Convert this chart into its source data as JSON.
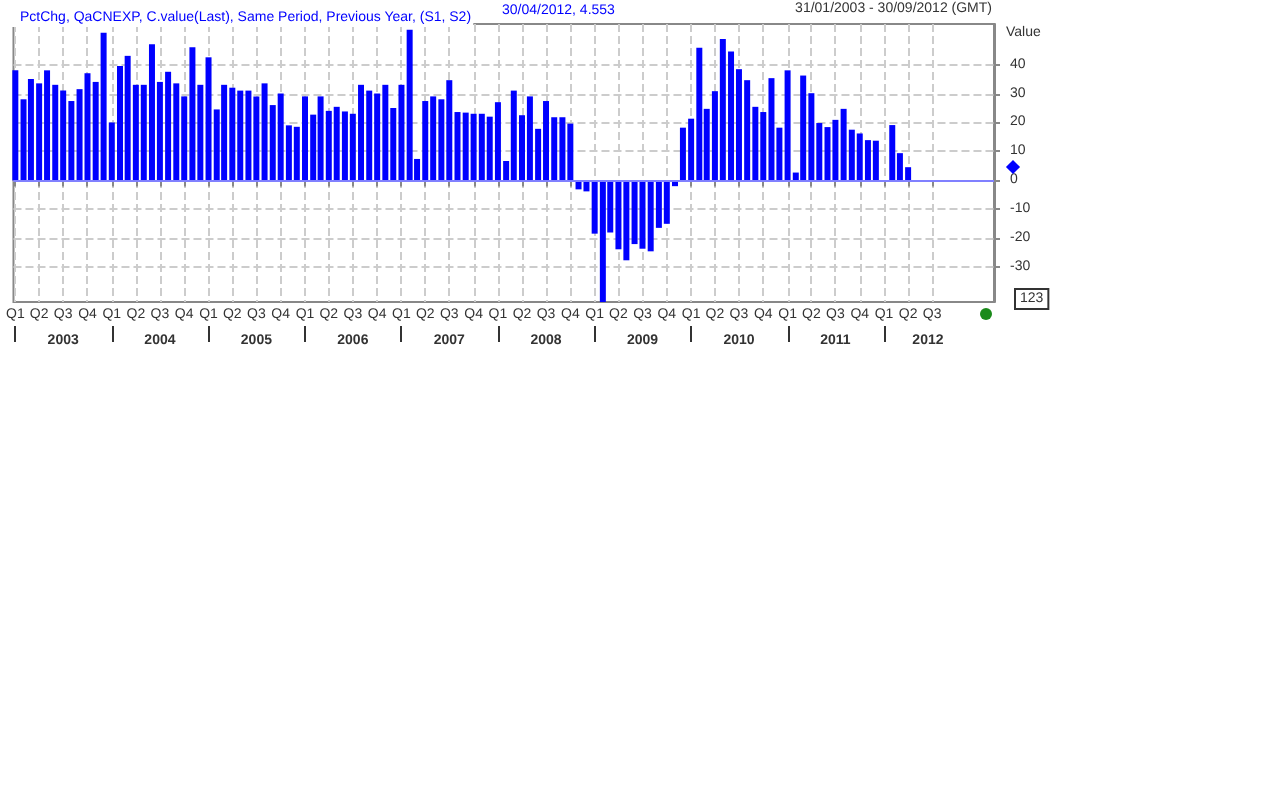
{
  "chart_data": {
    "type": "bar",
    "subtitle": "31/01/2003 - 30/09/2012 (GMT)",
    "ylabel": "Value",
    "annotations": [
      "30/04/2012, 4.553",
      "123"
    ],
    "x": [
      "2003-01",
      "2003-02",
      "2003-03",
      "2003-04",
      "2003-05",
      "2003-06",
      "2003-07",
      "2003-08",
      "2003-09",
      "2003-10",
      "2003-11",
      "2003-12",
      "2004-01",
      "2004-02",
      "2004-03",
      "2004-04",
      "2004-05",
      "2004-06",
      "2004-07",
      "2004-08",
      "2004-09",
      "2004-10",
      "2004-11",
      "2004-12",
      "2005-01",
      "2005-02",
      "2005-03",
      "2005-04",
      "2005-05",
      "2005-06",
      "2005-07",
      "2005-08",
      "2005-09",
      "2005-10",
      "2005-11",
      "2005-12",
      "2006-01",
      "2006-02",
      "2006-03",
      "2006-04",
      "2006-05",
      "2006-06",
      "2006-07",
      "2006-08",
      "2006-09",
      "2006-10",
      "2006-11",
      "2006-12",
      "2007-01",
      "2007-02",
      "2007-03",
      "2007-04",
      "2007-05",
      "2007-06",
      "2007-07",
      "2007-08",
      "2007-09",
      "2007-10",
      "2007-11",
      "2007-12",
      "2008-01",
      "2008-02",
      "2008-03",
      "2008-04",
      "2008-05",
      "2008-06",
      "2008-07",
      "2008-08",
      "2008-09",
      "2008-10",
      "2008-11",
      "2008-12",
      "2009-01",
      "2009-02",
      "2009-03",
      "2009-04",
      "2009-05",
      "2009-06",
      "2009-07",
      "2009-08",
      "2009-09",
      "2009-10",
      "2009-11",
      "2009-12",
      "2010-01",
      "2010-02",
      "2010-03",
      "2010-04",
      "2010-05",
      "2010-06",
      "2010-07",
      "2010-08",
      "2010-09",
      "2010-10",
      "2010-11",
      "2010-12",
      "2011-01",
      "2011-02",
      "2011-03",
      "2011-04",
      "2011-05",
      "2011-06",
      "2011-07",
      "2011-08",
      "2011-09",
      "2011-10",
      "2011-11",
      "2011-12",
      "2012-01",
      "2012-02",
      "2012-03",
      "2012-04"
    ],
    "series": [
      {
        "name": "PctChg, QaCNEXP, C.value(Last), Same Period, Previous Year, (S1, S2)",
        "color": "#0000ff",
        "values": [
          38,
          28,
          35,
          33.5,
          38,
          33,
          31,
          27.4,
          31.5,
          37,
          34,
          51,
          20,
          39.5,
          43,
          33,
          33,
          47,
          34,
          37.5,
          33.5,
          29,
          46,
          33,
          42.5,
          24.5,
          33,
          32,
          31,
          31,
          29,
          33.5,
          26,
          30,
          19,
          18.5,
          29,
          22.7,
          29,
          24,
          25.4,
          23.8,
          23,
          33,
          31,
          30,
          33,
          25,
          33,
          52,
          7.4,
          27.4,
          29,
          28,
          34.6,
          23.6,
          23.4,
          23,
          23,
          22,
          27,
          6.7,
          31,
          22.5,
          29,
          17.8,
          27.4,
          21.8,
          21.8,
          19.6,
          -3.1,
          -3.8,
          -18.4,
          -42,
          -18,
          -23.8,
          -27.6,
          -22,
          -23.6,
          -24.5,
          -16.4,
          -15,
          -2,
          18.2,
          21.3,
          45.8,
          24.7,
          30.8,
          48.8,
          44.5,
          38.4,
          34.6,
          25.4,
          23.6,
          35.3,
          18.2,
          38,
          2.7,
          36.2,
          30.1,
          19.8,
          18.4,
          20.9,
          24.7,
          17.5,
          16.2,
          13.9,
          13.7,
          -0.5,
          19.1,
          9.4,
          4.553
        ]
      }
    ],
    "xlim": [
      "2002-12-25",
      "2013-02-20"
    ],
    "xticks": [
      {
        "value": "2003-01",
        "label": "Q1"
      },
      {
        "value": "2003-04",
        "label": "Q2"
      },
      {
        "value": "2003-07",
        "label": "Q3"
      },
      {
        "value": "2003-10",
        "label": "Q4"
      },
      {
        "value": "2004-01",
        "label": "Q1"
      },
      {
        "value": "2004-04",
        "label": "Q2"
      },
      {
        "value": "2004-07",
        "label": "Q3"
      },
      {
        "value": "2004-10",
        "label": "Q4"
      },
      {
        "value": "2005-01",
        "label": "Q1"
      },
      {
        "value": "2005-04",
        "label": "Q2"
      },
      {
        "value": "2005-07",
        "label": "Q3"
      },
      {
        "value": "2005-10",
        "label": "Q4"
      },
      {
        "value": "2006-01",
        "label": "Q1"
      },
      {
        "value": "2006-04",
        "label": "Q2"
      },
      {
        "value": "2006-07",
        "label": "Q3"
      },
      {
        "value": "2006-10",
        "label": "Q4"
      },
      {
        "value": "2007-01",
        "label": "Q1"
      },
      {
        "value": "2007-04",
        "label": "Q2"
      },
      {
        "value": "2007-07",
        "label": "Q3"
      },
      {
        "value": "2007-10",
        "label": "Q4"
      },
      {
        "value": "2008-01",
        "label": "Q1"
      },
      {
        "value": "2008-04",
        "label": "Q2"
      },
      {
        "value": "2008-07",
        "label": "Q3"
      },
      {
        "value": "2008-10",
        "label": "Q4"
      },
      {
        "value": "2009-01",
        "label": "Q1"
      },
      {
        "value": "2009-04",
        "label": "Q2"
      },
      {
        "value": "2009-07",
        "label": "Q3"
      },
      {
        "value": "2009-10",
        "label": "Q4"
      },
      {
        "value": "2010-01",
        "label": "Q1"
      },
      {
        "value": "2010-04",
        "label": "Q2"
      },
      {
        "value": "2010-07",
        "label": "Q3"
      },
      {
        "value": "2010-10",
        "label": "Q4"
      },
      {
        "value": "2011-01",
        "label": "Q1"
      },
      {
        "value": "2011-04",
        "label": "Q2"
      },
      {
        "value": "2011-07",
        "label": "Q3"
      },
      {
        "value": "2011-10",
        "label": "Q4"
      },
      {
        "value": "2012-01",
        "label": "Q1"
      },
      {
        "value": "2012-04",
        "label": "Q2"
      },
      {
        "value": "2012-07",
        "label": "Q3"
      }
    ],
    "x2lim": [
      "2002-12-25",
      "2013-02-20"
    ],
    "x2ticks": [
      {
        "value": "2003-01",
        "label": null
      },
      {
        "value": "2003-07",
        "label": "2003"
      },
      {
        "value": "2004-01",
        "label": null
      },
      {
        "value": "2004-07",
        "label": "2004"
      },
      {
        "value": "2005-01",
        "label": null
      },
      {
        "value": "2005-07",
        "label": "2005"
      },
      {
        "value": "2006-01",
        "label": null
      },
      {
        "value": "2006-07",
        "label": "2006"
      },
      {
        "value": "2007-01",
        "label": null
      },
      {
        "value": "2007-07",
        "label": "2007"
      },
      {
        "value": "2008-01",
        "label": null
      },
      {
        "value": "2008-07",
        "label": "2008"
      },
      {
        "value": "2009-01",
        "label": null
      },
      {
        "value": "2009-07",
        "label": "2009"
      },
      {
        "value": "2010-01",
        "label": null
      },
      {
        "value": "2010-07",
        "label": "2010"
      },
      {
        "value": "2011-01",
        "label": null
      },
      {
        "value": "2011-07",
        "label": "2011"
      },
      {
        "value": "2012-01",
        "label": null
      },
      {
        "value": "2012-06-15",
        "label": "2012"
      }
    ],
    "ylim": [
      -42,
      54
    ],
    "yticks": [
      -30,
      -20,
      -10,
      0,
      10,
      20,
      30,
      40
    ],
    "ref_lines": [
      {
        "axis": "y",
        "value": 0,
        "color": "#8080ff"
      }
    ],
    "grid": true,
    "legend": "top left"
  }
}
